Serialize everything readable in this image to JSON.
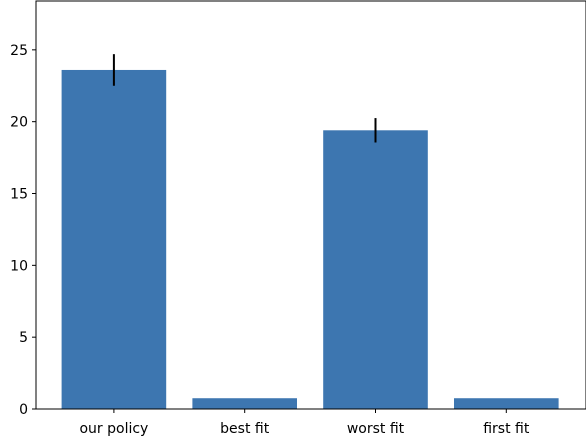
{
  "chart_data": {
    "type": "bar",
    "title": "",
    "xlabel": "",
    "ylabel": "",
    "categories": [
      "our policy",
      "best fit",
      "worst fit",
      "first fit"
    ],
    "values": [
      23.6,
      0.75,
      19.4,
      0.75
    ],
    "errors": [
      1.1,
      0.0,
      0.85,
      0.0
    ],
    "ylim": [
      0,
      28.4
    ],
    "yticks": [
      0,
      5,
      10,
      15,
      20,
      25
    ],
    "grid": false,
    "colors": {
      "bar": "#3d76b0",
      "error_bar": "#000000",
      "axes": "#000000"
    }
  }
}
